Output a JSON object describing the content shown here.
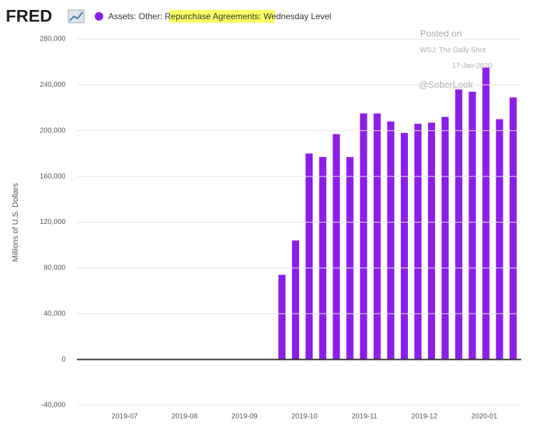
{
  "chart_data": {
    "type": "bar",
    "brand": "FRED",
    "title": "Assets: Other: Repurchase Agreements: Wednesday Level",
    "ylabel": "Millions of U.S. Dollars",
    "annotations": [
      "Posted on",
      "WSJ: The Daily Shot",
      "17-Jan-2020",
      "@SoberLook"
    ],
    "categories": [
      null,
      null,
      null,
      null,
      null,
      null,
      null,
      null,
      null,
      null,
      null,
      null,
      null,
      null,
      null,
      null,
      null,
      null
    ],
    "series": [
      {
        "name": "Assets: Other: Repurchase Agreements: Wednesday Level",
        "color": "#8b1eeb",
        "values": [
          74000,
          104000,
          180000,
          177000,
          197000,
          177000,
          215000,
          215000,
          208000,
          198000,
          206000,
          207000,
          212000,
          236000,
          234000,
          255000,
          210000,
          229000
        ]
      }
    ],
    "xticks": [
      "2019-07",
      "2019-08",
      "2019-09",
      "2019-10",
      "2019-11",
      "2019-12",
      "2020-01"
    ],
    "ylim": [
      -40000,
      280000
    ],
    "yticks": [
      {
        "value": -40000,
        "label": "-40,000"
      },
      0,
      {
        "value": 40000,
        "label": "40,000"
      },
      {
        "value": 80000,
        "label": "80,000"
      },
      {
        "value": 120000,
        "label": "120,000"
      },
      {
        "value": 160000,
        "label": "160,000"
      },
      {
        "value": 200000,
        "label": "200,000"
      },
      {
        "value": 240000,
        "label": "240,000"
      },
      {
        "value": 280000,
        "label": "280,000"
      }
    ],
    "grid": true
  }
}
